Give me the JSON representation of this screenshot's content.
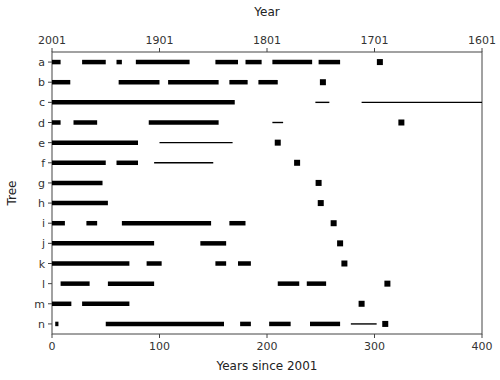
{
  "chart_data": {
    "type": "range",
    "categories": [
      "a",
      "b",
      "c",
      "d",
      "e",
      "f",
      "g",
      "h",
      "i",
      "j",
      "k",
      "l",
      "m",
      "n"
    ],
    "xlabel": "Years since 2001",
    "ylabel": "Tree",
    "x2label": "Year",
    "xlim": [
      0,
      400
    ],
    "xticks": [
      0,
      100,
      200,
      300,
      400
    ],
    "x2lim": [
      0,
      400
    ],
    "x2ticks": [
      {
        "value": 0,
        "label": "2001"
      },
      {
        "value": 100,
        "label": "1901"
      },
      {
        "value": 200,
        "label": "1801"
      },
      {
        "value": 300,
        "label": "1701"
      },
      {
        "value": 400,
        "label": "1601"
      }
    ],
    "grid": false,
    "series": [
      {
        "type": "segment",
        "line_style": "thick",
        "color": "#000000",
        "values": [
          [
            [
              0,
              8
            ],
            [
              28,
              50
            ],
            [
              60,
              65
            ],
            [
              78,
              128
            ],
            [
              152,
              173
            ],
            [
              180,
              195
            ],
            [
              205,
              242
            ],
            [
              248,
              268
            ]
          ],
          [
            [
              0,
              17
            ],
            [
              62,
              100
            ],
            [
              108,
              155
            ],
            [
              165,
              182
            ],
            [
              192,
              210
            ]
          ],
          [
            [
              0,
              170
            ]
          ],
          [
            [
              0,
              8
            ],
            [
              20,
              42
            ],
            [
              90,
              155
            ]
          ],
          [
            [
              0,
              80
            ]
          ],
          [
            [
              0,
              50
            ],
            [
              60,
              80
            ]
          ],
          [
            [
              0,
              47
            ]
          ],
          [
            [
              0,
              52
            ]
          ],
          [
            [
              0,
              12
            ],
            [
              32,
              42
            ],
            [
              65,
              148
            ],
            [
              165,
              180
            ]
          ],
          [
            [
              0,
              95
            ],
            [
              138,
              162
            ]
          ],
          [
            [
              0,
              72
            ],
            [
              88,
              102
            ],
            [
              152,
              162
            ],
            [
              173,
              185
            ]
          ],
          [
            [
              8,
              35
            ],
            [
              52,
              95
            ],
            [
              210,
              230
            ],
            [
              237,
              255
            ]
          ],
          [
            [
              0,
              18
            ],
            [
              28,
              72
            ]
          ],
          [
            [
              3,
              6
            ],
            [
              50,
              160
            ],
            [
              175,
              185
            ],
            [
              202,
              222
            ],
            [
              240,
              268
            ]
          ]
        ]
      },
      {
        "type": "segment",
        "line_style": "thin",
        "color": "#000000",
        "values": [
          [],
          [],
          [
            [
              245,
              258
            ],
            [
              288,
              400
            ]
          ],
          [
            [
              205,
              215
            ]
          ],
          [
            [
              100,
              168
            ]
          ],
          [
            [
              95,
              150
            ]
          ],
          [],
          [],
          [],
          [],
          [],
          [],
          [],
          [
            [
              278,
              302
            ]
          ]
        ]
      },
      {
        "type": "point",
        "marker": "square",
        "color": "#000000",
        "values": [
          [
            305
          ],
          [
            252
          ],
          [],
          [
            325
          ],
          [
            210
          ],
          [
            228
          ],
          [
            248
          ],
          [
            250
          ],
          [
            262
          ],
          [
            268
          ],
          [
            272
          ],
          [
            312
          ],
          [
            288
          ],
          [
            310
          ]
        ]
      }
    ]
  }
}
